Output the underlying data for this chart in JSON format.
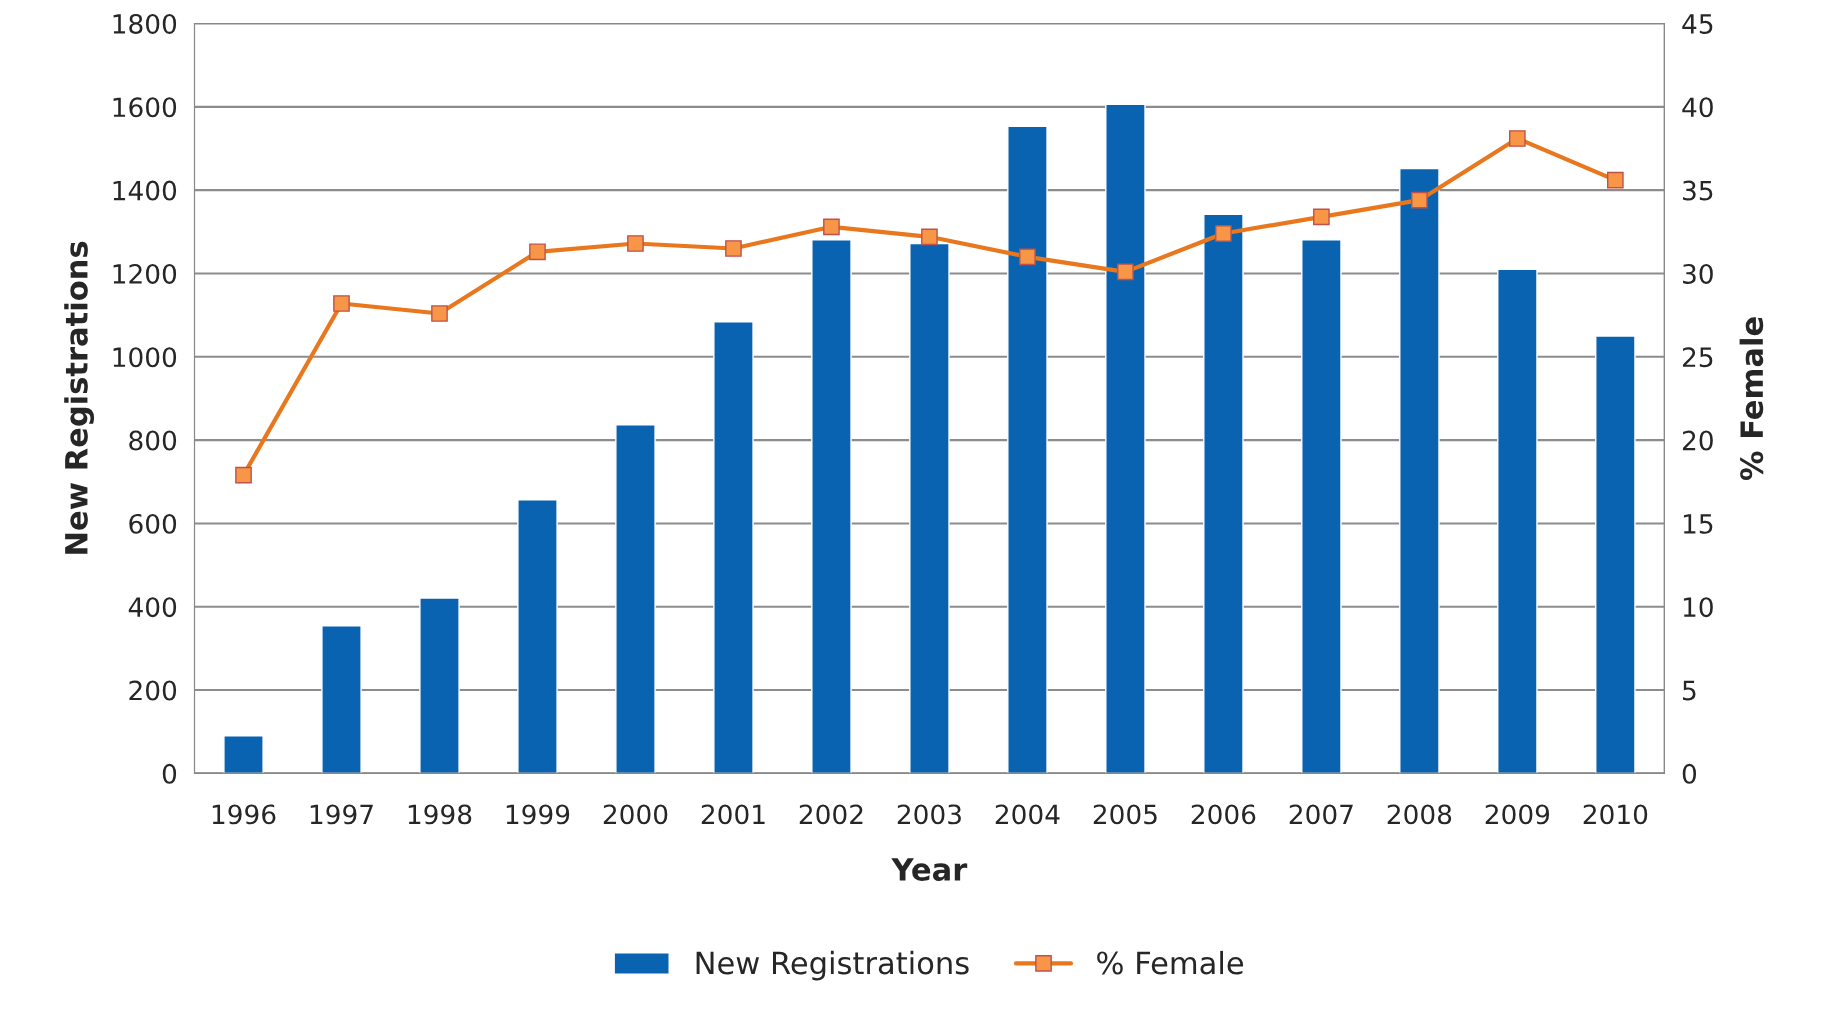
{
  "chart_data": {
    "type": "bar",
    "xlabel": "Year",
    "ylabel": "New Registrations",
    "y2label": "% Female",
    "categories": [
      "1996",
      "1997",
      "1998",
      "1999",
      "2000",
      "2001",
      "2002",
      "2003",
      "2004",
      "2005",
      "2006",
      "2007",
      "2008",
      "2009",
      "2010"
    ],
    "series": [
      {
        "name": "New Registrations",
        "color": "#0a63b0",
        "values": [
          90,
          354,
          421,
          657,
          837,
          1084,
          1281,
          1272,
          1553,
          1606,
          1342,
          1281,
          1452,
          1210,
          1050
        ]
      },
      {
        "name": "% Female",
        "type": "line",
        "axis": "y2",
        "color": "#e8771e",
        "marker": "square",
        "values": [
          17.9,
          28.2,
          27.6,
          31.3,
          31.8,
          31.5,
          32.8,
          32.2,
          31.0,
          30.1,
          32.4,
          33.4,
          34.4,
          38.1,
          35.6
        ]
      }
    ],
    "ylim": [
      0,
      1800
    ],
    "yticks": [
      0,
      200,
      400,
      600,
      800,
      1000,
      1200,
      1400,
      1600,
      1800
    ],
    "y2lim": [
      0,
      45
    ],
    "y2ticks": [
      0,
      5,
      10,
      15,
      20,
      25,
      30,
      35,
      40,
      45
    ],
    "grid": "y",
    "legend": "bottom"
  }
}
